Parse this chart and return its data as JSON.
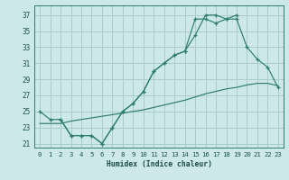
{
  "bg_color": "#cce8e8",
  "grid_color": "#aacccc",
  "line_color": "#2e7d6e",
  "xlabel": "Humidex (Indice chaleur)",
  "xlim": [
    -0.5,
    23.5
  ],
  "ylim": [
    20.5,
    38.2
  ],
  "xticks": [
    0,
    1,
    2,
    3,
    4,
    5,
    6,
    7,
    8,
    9,
    10,
    11,
    12,
    13,
    14,
    15,
    16,
    17,
    18,
    19,
    20,
    21,
    22,
    23
  ],
  "yticks": [
    21,
    23,
    25,
    27,
    29,
    31,
    33,
    35,
    37
  ],
  "line1_x": [
    0,
    1,
    2,
    3,
    4,
    5,
    6,
    7,
    8,
    9,
    10,
    11,
    12,
    13,
    14,
    15,
    16,
    17,
    18,
    19
  ],
  "line1_y": [
    25,
    24,
    24,
    22,
    22,
    22,
    21,
    23,
    25,
    26,
    27.5,
    30,
    31,
    32,
    32.5,
    34.5,
    37,
    37,
    36.5,
    37
  ],
  "line2_x": [
    2,
    3,
    4,
    5,
    6,
    7,
    8,
    9,
    10,
    11,
    12,
    13,
    14,
    15,
    16,
    17,
    18,
    19,
    20,
    21,
    22,
    23
  ],
  "line2_y": [
    24,
    22,
    22,
    22,
    21,
    23,
    25,
    26,
    27.5,
    30,
    31,
    32,
    32.5,
    36.5,
    36.5,
    36,
    36.5,
    36.5,
    33,
    31.5,
    30.5,
    28
  ],
  "line3_x": [
    0,
    1,
    2,
    3,
    4,
    5,
    6,
    7,
    8,
    9,
    10,
    11,
    12,
    13,
    14,
    15,
    16,
    17,
    18,
    19,
    20,
    21,
    22,
    23
  ],
  "line3_y": [
    23.5,
    23.5,
    23.5,
    23.8,
    24.0,
    24.2,
    24.4,
    24.6,
    24.8,
    25.0,
    25.2,
    25.5,
    25.8,
    26.1,
    26.4,
    26.8,
    27.2,
    27.5,
    27.8,
    28.0,
    28.3,
    28.5,
    28.5,
    28.2
  ]
}
